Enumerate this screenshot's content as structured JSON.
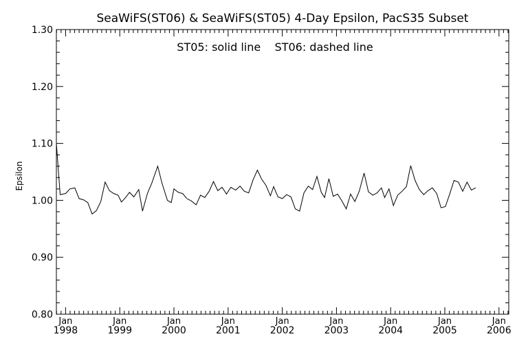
{
  "chart_data": {
    "type": "line",
    "title": "SeaWiFS(ST06) & SeaWiFS(ST05) 4-Day Epsilon, PacS35 Subset",
    "annotation": "ST05: solid line    ST06: dashed line",
    "xlabel": "",
    "ylabel": "Epsilon",
    "ylim": [
      0.8,
      1.3
    ],
    "xlim": [
      1997.83,
      2006.18
    ],
    "yticks": [
      "0.80",
      "0.90",
      "1.00",
      "1.10",
      "1.20",
      "1.30"
    ],
    "xticks": [
      {
        "top": "Jan",
        "bottom": "1998",
        "value": 1998
      },
      {
        "top": "Jan",
        "bottom": "1999",
        "value": 1999
      },
      {
        "top": "Jan",
        "bottom": "2000",
        "value": 2000
      },
      {
        "top": "Jan",
        "bottom": "2001",
        "value": 2001
      },
      {
        "top": "Jan",
        "bottom": "2002",
        "value": 2002
      },
      {
        "top": "Jan",
        "bottom": "2003",
        "value": 2003
      },
      {
        "top": "Jan",
        "bottom": "2004",
        "value": 2004
      },
      {
        "top": "Jan",
        "bottom": "2005",
        "value": 2005
      },
      {
        "top": "Jan",
        "bottom": "2006",
        "value": 2006
      }
    ],
    "grid": false,
    "series": [
      {
        "name": "ST05",
        "style": "solid",
        "color": "#000000",
        "points": [
          [
            1997.83,
            1.1
          ],
          [
            1997.9,
            1.01
          ],
          [
            1998.0,
            1.012
          ],
          [
            1998.08,
            1.02
          ],
          [
            1998.17,
            1.022
          ],
          [
            1998.25,
            1.003
          ],
          [
            1998.33,
            1.001
          ],
          [
            1998.41,
            0.996
          ],
          [
            1998.49,
            0.976
          ],
          [
            1998.57,
            0.982
          ],
          [
            1998.65,
            0.998
          ],
          [
            1998.73,
            1.032
          ],
          [
            1998.81,
            1.017
          ],
          [
            1998.89,
            1.012
          ],
          [
            1998.97,
            1.009
          ],
          [
            1999.03,
            0.997
          ],
          [
            1999.1,
            1.004
          ],
          [
            1999.18,
            1.014
          ],
          [
            1999.26,
            1.006
          ],
          [
            1999.35,
            1.019
          ],
          [
            1999.42,
            0.981
          ],
          [
            1999.51,
            1.012
          ],
          [
            1999.59,
            1.03
          ],
          [
            1999.7,
            1.06
          ],
          [
            1999.78,
            1.03
          ],
          [
            1999.88,
            1.0
          ],
          [
            1999.95,
            0.996
          ],
          [
            2000.0,
            1.02
          ],
          [
            2000.08,
            1.014
          ],
          [
            2000.16,
            1.012
          ],
          [
            2000.24,
            1.003
          ],
          [
            2000.32,
            0.999
          ],
          [
            2000.41,
            0.992
          ],
          [
            2000.49,
            1.009
          ],
          [
            2000.57,
            1.005
          ],
          [
            2000.65,
            1.016
          ],
          [
            2000.73,
            1.033
          ],
          [
            2000.81,
            1.017
          ],
          [
            2000.89,
            1.023
          ],
          [
            2000.97,
            1.011
          ],
          [
            2001.05,
            1.023
          ],
          [
            2001.14,
            1.018
          ],
          [
            2001.22,
            1.025
          ],
          [
            2001.3,
            1.016
          ],
          [
            2001.38,
            1.013
          ],
          [
            2001.46,
            1.036
          ],
          [
            2001.54,
            1.053
          ],
          [
            2001.62,
            1.037
          ],
          [
            2001.7,
            1.026
          ],
          [
            2001.78,
            1.008
          ],
          [
            2001.84,
            1.024
          ],
          [
            2001.92,
            1.006
          ],
          [
            2002.0,
            1.003
          ],
          [
            2002.08,
            1.01
          ],
          [
            2002.16,
            1.006
          ],
          [
            2002.24,
            0.985
          ],
          [
            2002.32,
            0.981
          ],
          [
            2002.4,
            1.013
          ],
          [
            2002.48,
            1.025
          ],
          [
            2002.56,
            1.019
          ],
          [
            2002.64,
            1.042
          ],
          [
            2002.72,
            1.014
          ],
          [
            2002.78,
            1.005
          ],
          [
            2002.86,
            1.038
          ],
          [
            2002.94,
            1.007
          ],
          [
            2003.02,
            1.011
          ],
          [
            2003.1,
            0.999
          ],
          [
            2003.18,
            0.985
          ],
          [
            2003.26,
            1.011
          ],
          [
            2003.34,
            0.998
          ],
          [
            2003.42,
            1.016
          ],
          [
            2003.51,
            1.048
          ],
          [
            2003.59,
            1.015
          ],
          [
            2003.67,
            1.009
          ],
          [
            2003.75,
            1.013
          ],
          [
            2003.83,
            1.022
          ],
          [
            2003.89,
            1.005
          ],
          [
            2003.97,
            1.02
          ],
          [
            2004.05,
            0.991
          ],
          [
            2004.13,
            1.009
          ],
          [
            2004.21,
            1.016
          ],
          [
            2004.29,
            1.024
          ],
          [
            2004.37,
            1.061
          ],
          [
            2004.45,
            1.035
          ],
          [
            2004.53,
            1.019
          ],
          [
            2004.61,
            1.01
          ],
          [
            2004.69,
            1.017
          ],
          [
            2004.77,
            1.022
          ],
          [
            2004.85,
            1.012
          ],
          [
            2004.93,
            0.987
          ],
          [
            2005.01,
            0.989
          ],
          [
            2005.09,
            1.011
          ],
          [
            2005.17,
            1.035
          ],
          [
            2005.25,
            1.032
          ],
          [
            2005.33,
            1.016
          ],
          [
            2005.41,
            1.032
          ],
          [
            2005.49,
            1.018
          ],
          [
            2005.57,
            1.022
          ]
        ]
      }
    ]
  }
}
